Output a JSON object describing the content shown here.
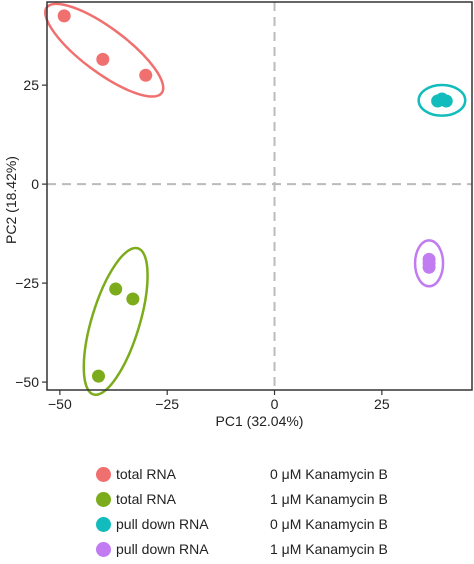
{
  "chart_data": {
    "type": "scatter",
    "xlabel": "PC1 (32.04%)",
    "ylabel": "PC2 (18.42%)",
    "xlim": [
      -53,
      46
    ],
    "ylim": [
      -52,
      46
    ],
    "xticks": [
      -50,
      -25,
      0,
      25
    ],
    "yticks": [
      25,
      0,
      -25,
      -50
    ],
    "zero_lines": true,
    "legend_position": "bottom",
    "series": [
      {
        "group": "total RNA",
        "condition": "0 μM Kanamycin B",
        "color": "#f07070",
        "points": [
          [
            -49,
            42.5
          ],
          [
            -40,
            31.5
          ],
          [
            -30,
            27.5
          ]
        ]
      },
      {
        "group": "total RNA",
        "condition": "1 μM Kanamycin B",
        "color": "#7cac1c",
        "points": [
          [
            -37,
            -26.5
          ],
          [
            -33,
            -29
          ],
          [
            -41,
            -48.5
          ]
        ]
      },
      {
        "group": "pull down RNA",
        "condition": "0 μM Kanamycin B",
        "color": "#13bcbc",
        "points": [
          [
            38,
            21
          ],
          [
            40,
            21
          ],
          [
            39,
            21.5
          ]
        ]
      },
      {
        "group": "pull down RNA",
        "condition": "1 μM Kanamycin B",
        "color": "#c07cf0",
        "points": [
          [
            36,
            -19
          ],
          [
            36,
            -21
          ],
          [
            36,
            -20
          ]
        ]
      }
    ]
  }
}
